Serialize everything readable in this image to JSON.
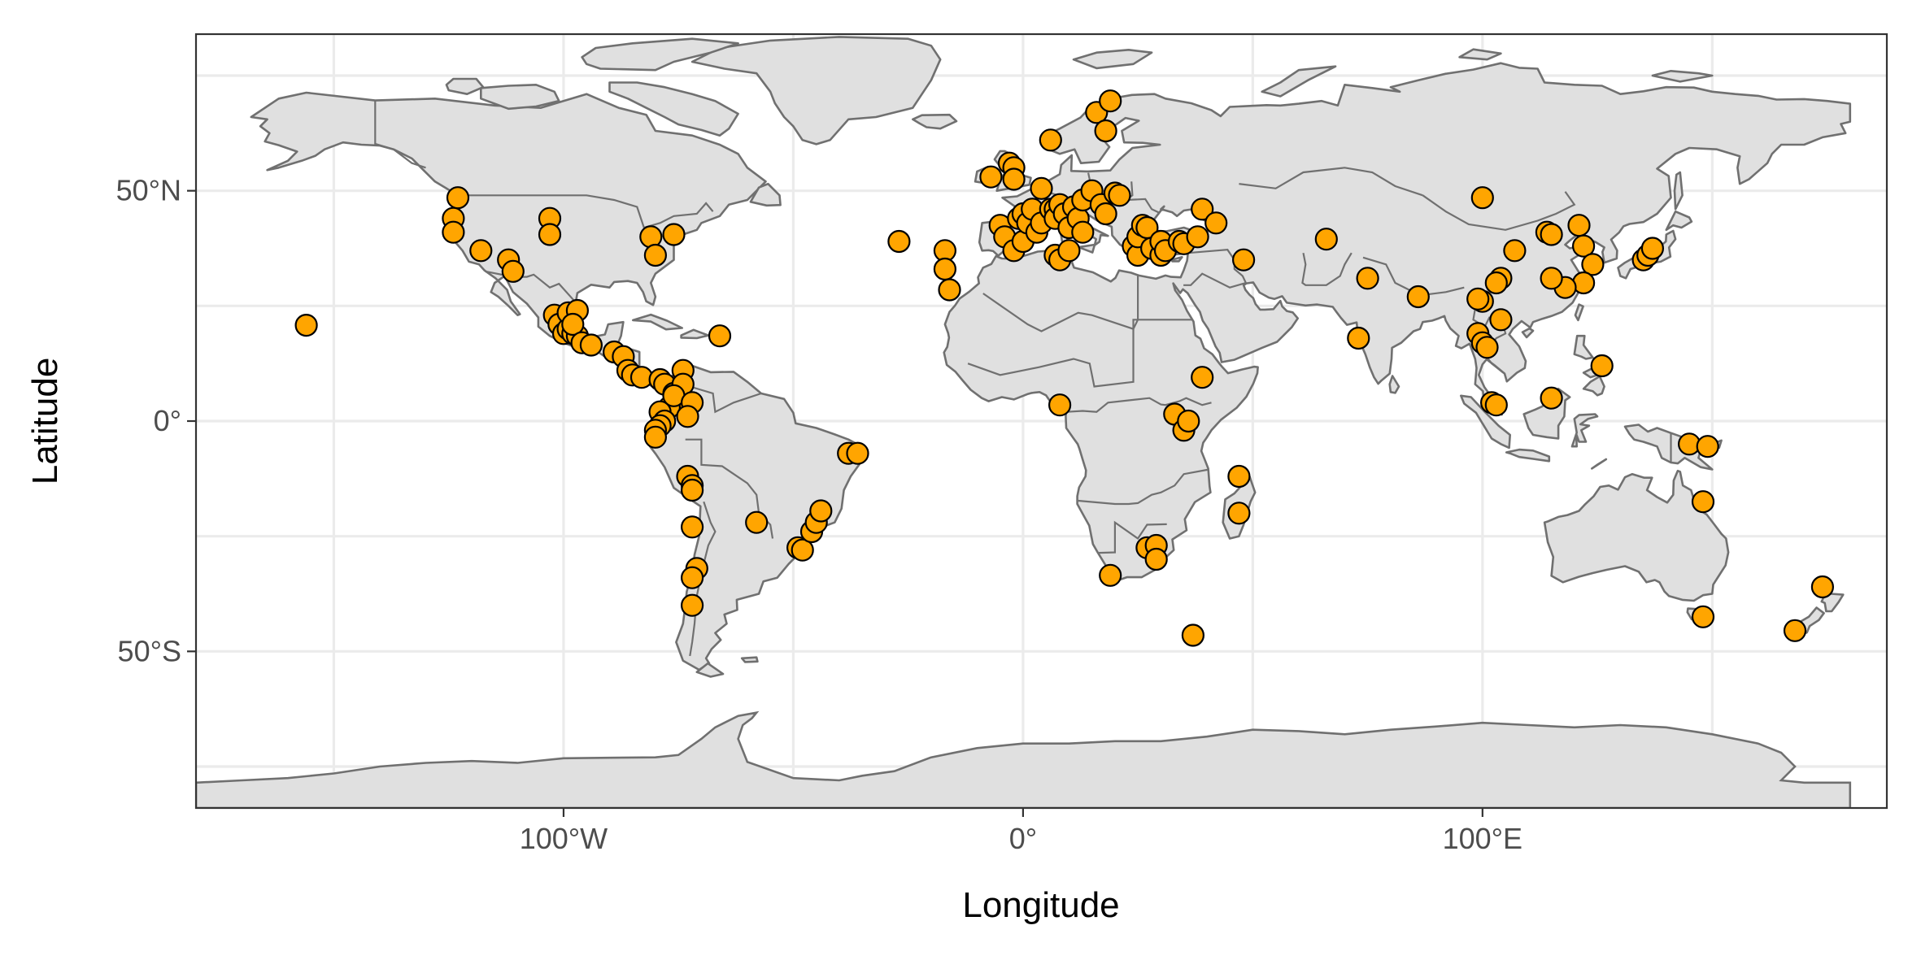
{
  "chart_data": {
    "type": "scatter",
    "map": "world",
    "xlabel": "Longitude",
    "ylabel": "Latitude",
    "xlim": [
      -180,
      188
    ],
    "ylim": [
      -84,
      84
    ],
    "x_ticks": [
      {
        "value": -100,
        "label": "100°W"
      },
      {
        "value": 0,
        "label": "0°"
      },
      {
        "value": 100,
        "label": "100°E"
      }
    ],
    "y_ticks": [
      {
        "value": 50,
        "label": "50°N"
      },
      {
        "value": 0,
        "label": "0°"
      },
      {
        "value": -50,
        "label": "50°S"
      }
    ],
    "grid": true,
    "colors": {
      "point_fill": "#FFA500",
      "point_stroke": "#000000",
      "land": "#E0E0E0",
      "coast": "#707070"
    },
    "points": [
      [
        -156,
        20.8
      ],
      [
        -123,
        48.5
      ],
      [
        -124,
        44
      ],
      [
        -124,
        41
      ],
      [
        -118,
        37
      ],
      [
        -112,
        35
      ],
      [
        -111,
        32.5
      ],
      [
        -103,
        44
      ],
      [
        -103,
        40.5
      ],
      [
        -81,
        40
      ],
      [
        -80,
        36
      ],
      [
        -76,
        40.5
      ],
      [
        -102,
        23
      ],
      [
        -101,
        21
      ],
      [
        -100,
        19
      ],
      [
        -99,
        20
      ],
      [
        -98,
        19
      ],
      [
        -97,
        18.5
      ],
      [
        -99,
        23.5
      ],
      [
        -97,
        24
      ],
      [
        -98,
        21
      ],
      [
        -96,
        17
      ],
      [
        -94,
        16.5
      ],
      [
        -89,
        15
      ],
      [
        -87,
        14
      ],
      [
        -86,
        11
      ],
      [
        -85,
        10
      ],
      [
        -83,
        9.5
      ],
      [
        -79,
        9
      ],
      [
        -78,
        8
      ],
      [
        -76,
        6
      ],
      [
        -75,
        4
      ],
      [
        -77,
        3
      ],
      [
        -79,
        2
      ],
      [
        -78,
        0
      ],
      [
        -79,
        -1
      ],
      [
        -80,
        -2
      ],
      [
        -80,
        -3.5
      ],
      [
        -74,
        11
      ],
      [
        -74,
        8
      ],
      [
        -76,
        5.5
      ],
      [
        -72,
        4
      ],
      [
        -73,
        1
      ],
      [
        -66,
        18.5
      ],
      [
        -73,
        -12
      ],
      [
        -72,
        -14
      ],
      [
        -72,
        -15
      ],
      [
        -72,
        -23
      ],
      [
        -71,
        -32
      ],
      [
        -72,
        -34
      ],
      [
        -72,
        -40
      ],
      [
        -58,
        -22
      ],
      [
        -49,
        -27.5
      ],
      [
        -48,
        -28
      ],
      [
        -46,
        -24
      ],
      [
        -45,
        -22
      ],
      [
        -44,
        -19.5
      ],
      [
        -38,
        -7
      ],
      [
        -36,
        -7
      ],
      [
        -27,
        39
      ],
      [
        -17,
        37
      ],
      [
        -17,
        33
      ],
      [
        -16,
        28.5
      ],
      [
        -7,
        53
      ],
      [
        -5,
        42.5
      ],
      [
        -4,
        40
      ],
      [
        -3,
        56
      ],
      [
        -2,
        55
      ],
      [
        -2,
        52.5
      ],
      [
        -2,
        37
      ],
      [
        -1,
        44
      ],
      [
        0,
        39
      ],
      [
        0,
        45
      ],
      [
        1,
        43
      ],
      [
        2,
        46
      ],
      [
        3,
        41
      ],
      [
        4,
        43
      ],
      [
        4,
        50.5
      ],
      [
        6,
        61
      ],
      [
        6,
        46
      ],
      [
        7,
        46
      ],
      [
        7,
        44
      ],
      [
        7,
        36
      ],
      [
        8,
        35
      ],
      [
        8,
        47
      ],
      [
        9,
        45
      ],
      [
        10,
        42
      ],
      [
        10,
        37
      ],
      [
        11,
        46.5
      ],
      [
        12,
        44
      ],
      [
        13,
        41
      ],
      [
        13,
        48
      ],
      [
        15,
        50
      ],
      [
        16,
        67
      ],
      [
        17,
        47
      ],
      [
        18,
        45
      ],
      [
        18,
        63
      ],
      [
        19,
        69.5
      ],
      [
        20,
        49.5
      ],
      [
        21,
        49
      ],
      [
        24,
        38
      ],
      [
        25,
        36
      ],
      [
        25,
        40
      ],
      [
        26,
        42.5
      ],
      [
        27,
        42
      ],
      [
        28,
        37.5
      ],
      [
        30,
        36
      ],
      [
        30,
        39
      ],
      [
        31,
        37
      ],
      [
        34,
        39
      ],
      [
        35,
        38.5
      ],
      [
        38,
        40
      ],
      [
        39,
        46
      ],
      [
        42,
        43
      ],
      [
        48,
        35
      ],
      [
        66,
        39.5
      ],
      [
        100,
        48.5
      ],
      [
        114,
        41
      ],
      [
        115,
        40.5
      ],
      [
        121,
        42.5
      ],
      [
        122,
        38
      ],
      [
        124,
        34
      ],
      [
        122,
        30
      ],
      [
        118,
        29
      ],
      [
        115,
        31
      ],
      [
        104,
        31
      ],
      [
        103,
        30
      ],
      [
        107,
        37
      ],
      [
        104,
        22
      ],
      [
        100,
        26
      ],
      [
        99,
        26.5
      ],
      [
        99,
        19
      ],
      [
        100,
        17
      ],
      [
        101,
        16
      ],
      [
        102,
        4
      ],
      [
        103,
        3.5
      ],
      [
        75,
        31
      ],
      [
        86,
        27
      ],
      [
        73,
        18
      ],
      [
        115,
        5
      ],
      [
        126,
        12
      ],
      [
        135,
        35
      ],
      [
        136,
        36
      ],
      [
        137,
        37.5
      ],
      [
        19,
        -33.5
      ],
      [
        27,
        -27.5
      ],
      [
        29,
        -27
      ],
      [
        29,
        -30
      ],
      [
        33,
        1.5
      ],
      [
        35,
        -2
      ],
      [
        36,
        0
      ],
      [
        37,
        -46.5
      ],
      [
        39,
        9.5
      ],
      [
        47,
        -12
      ],
      [
        47,
        -20
      ],
      [
        8,
        3.5
      ],
      [
        145,
        -5
      ],
      [
        149,
        -5.5
      ],
      [
        148,
        -17.5
      ],
      [
        148,
        -42.5
      ],
      [
        168,
        -45.5
      ],
      [
        174,
        -36
      ]
    ]
  }
}
